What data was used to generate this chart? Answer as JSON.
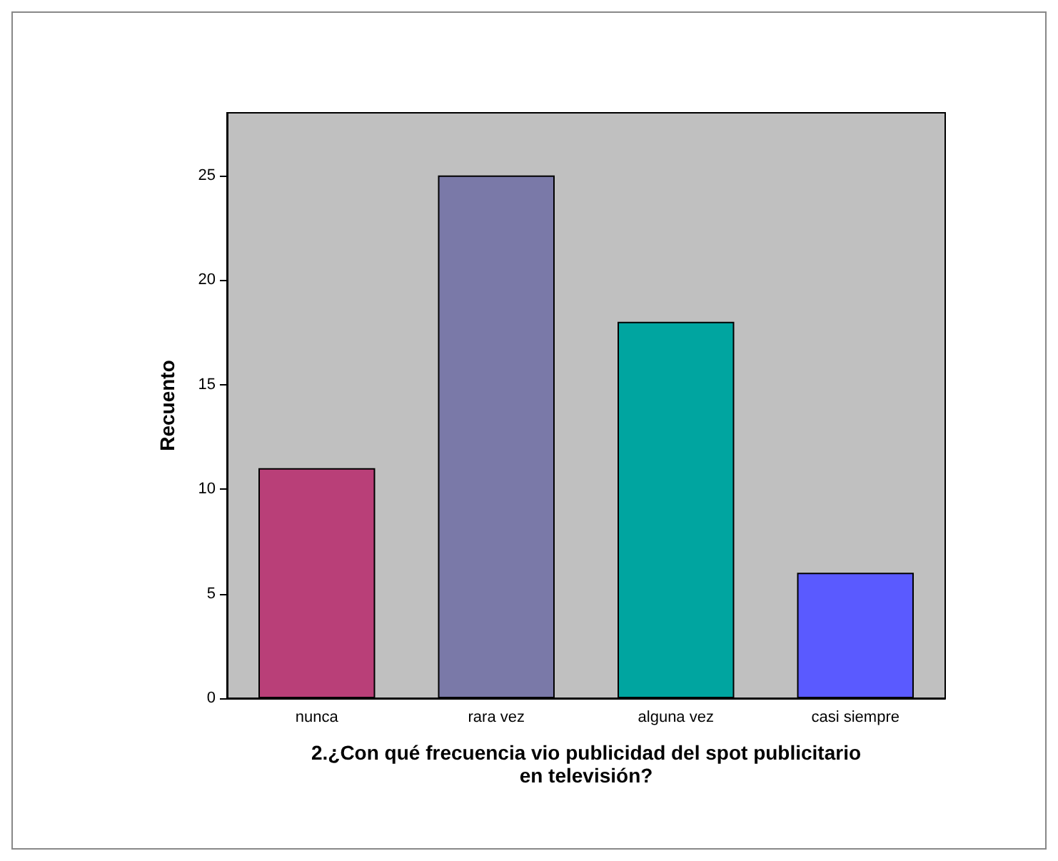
{
  "chart_data": {
    "type": "bar",
    "xlabel": "2.¿Con qué frecuencia vio publicidad del spot publicitario en televisión?",
    "ylabel": "Recuento",
    "categories": [
      "nunca",
      "rara vez",
      "alguna vez",
      "casi siempre"
    ],
    "values": [
      11,
      25,
      18,
      6
    ],
    "colors": [
      "#b93f78",
      "#7a79a8",
      "#00a5a0",
      "#5a5aff"
    ],
    "ylim": [
      0,
      28
    ],
    "yticks": [
      0,
      5,
      10,
      15,
      20,
      25
    ],
    "grid": false
  }
}
